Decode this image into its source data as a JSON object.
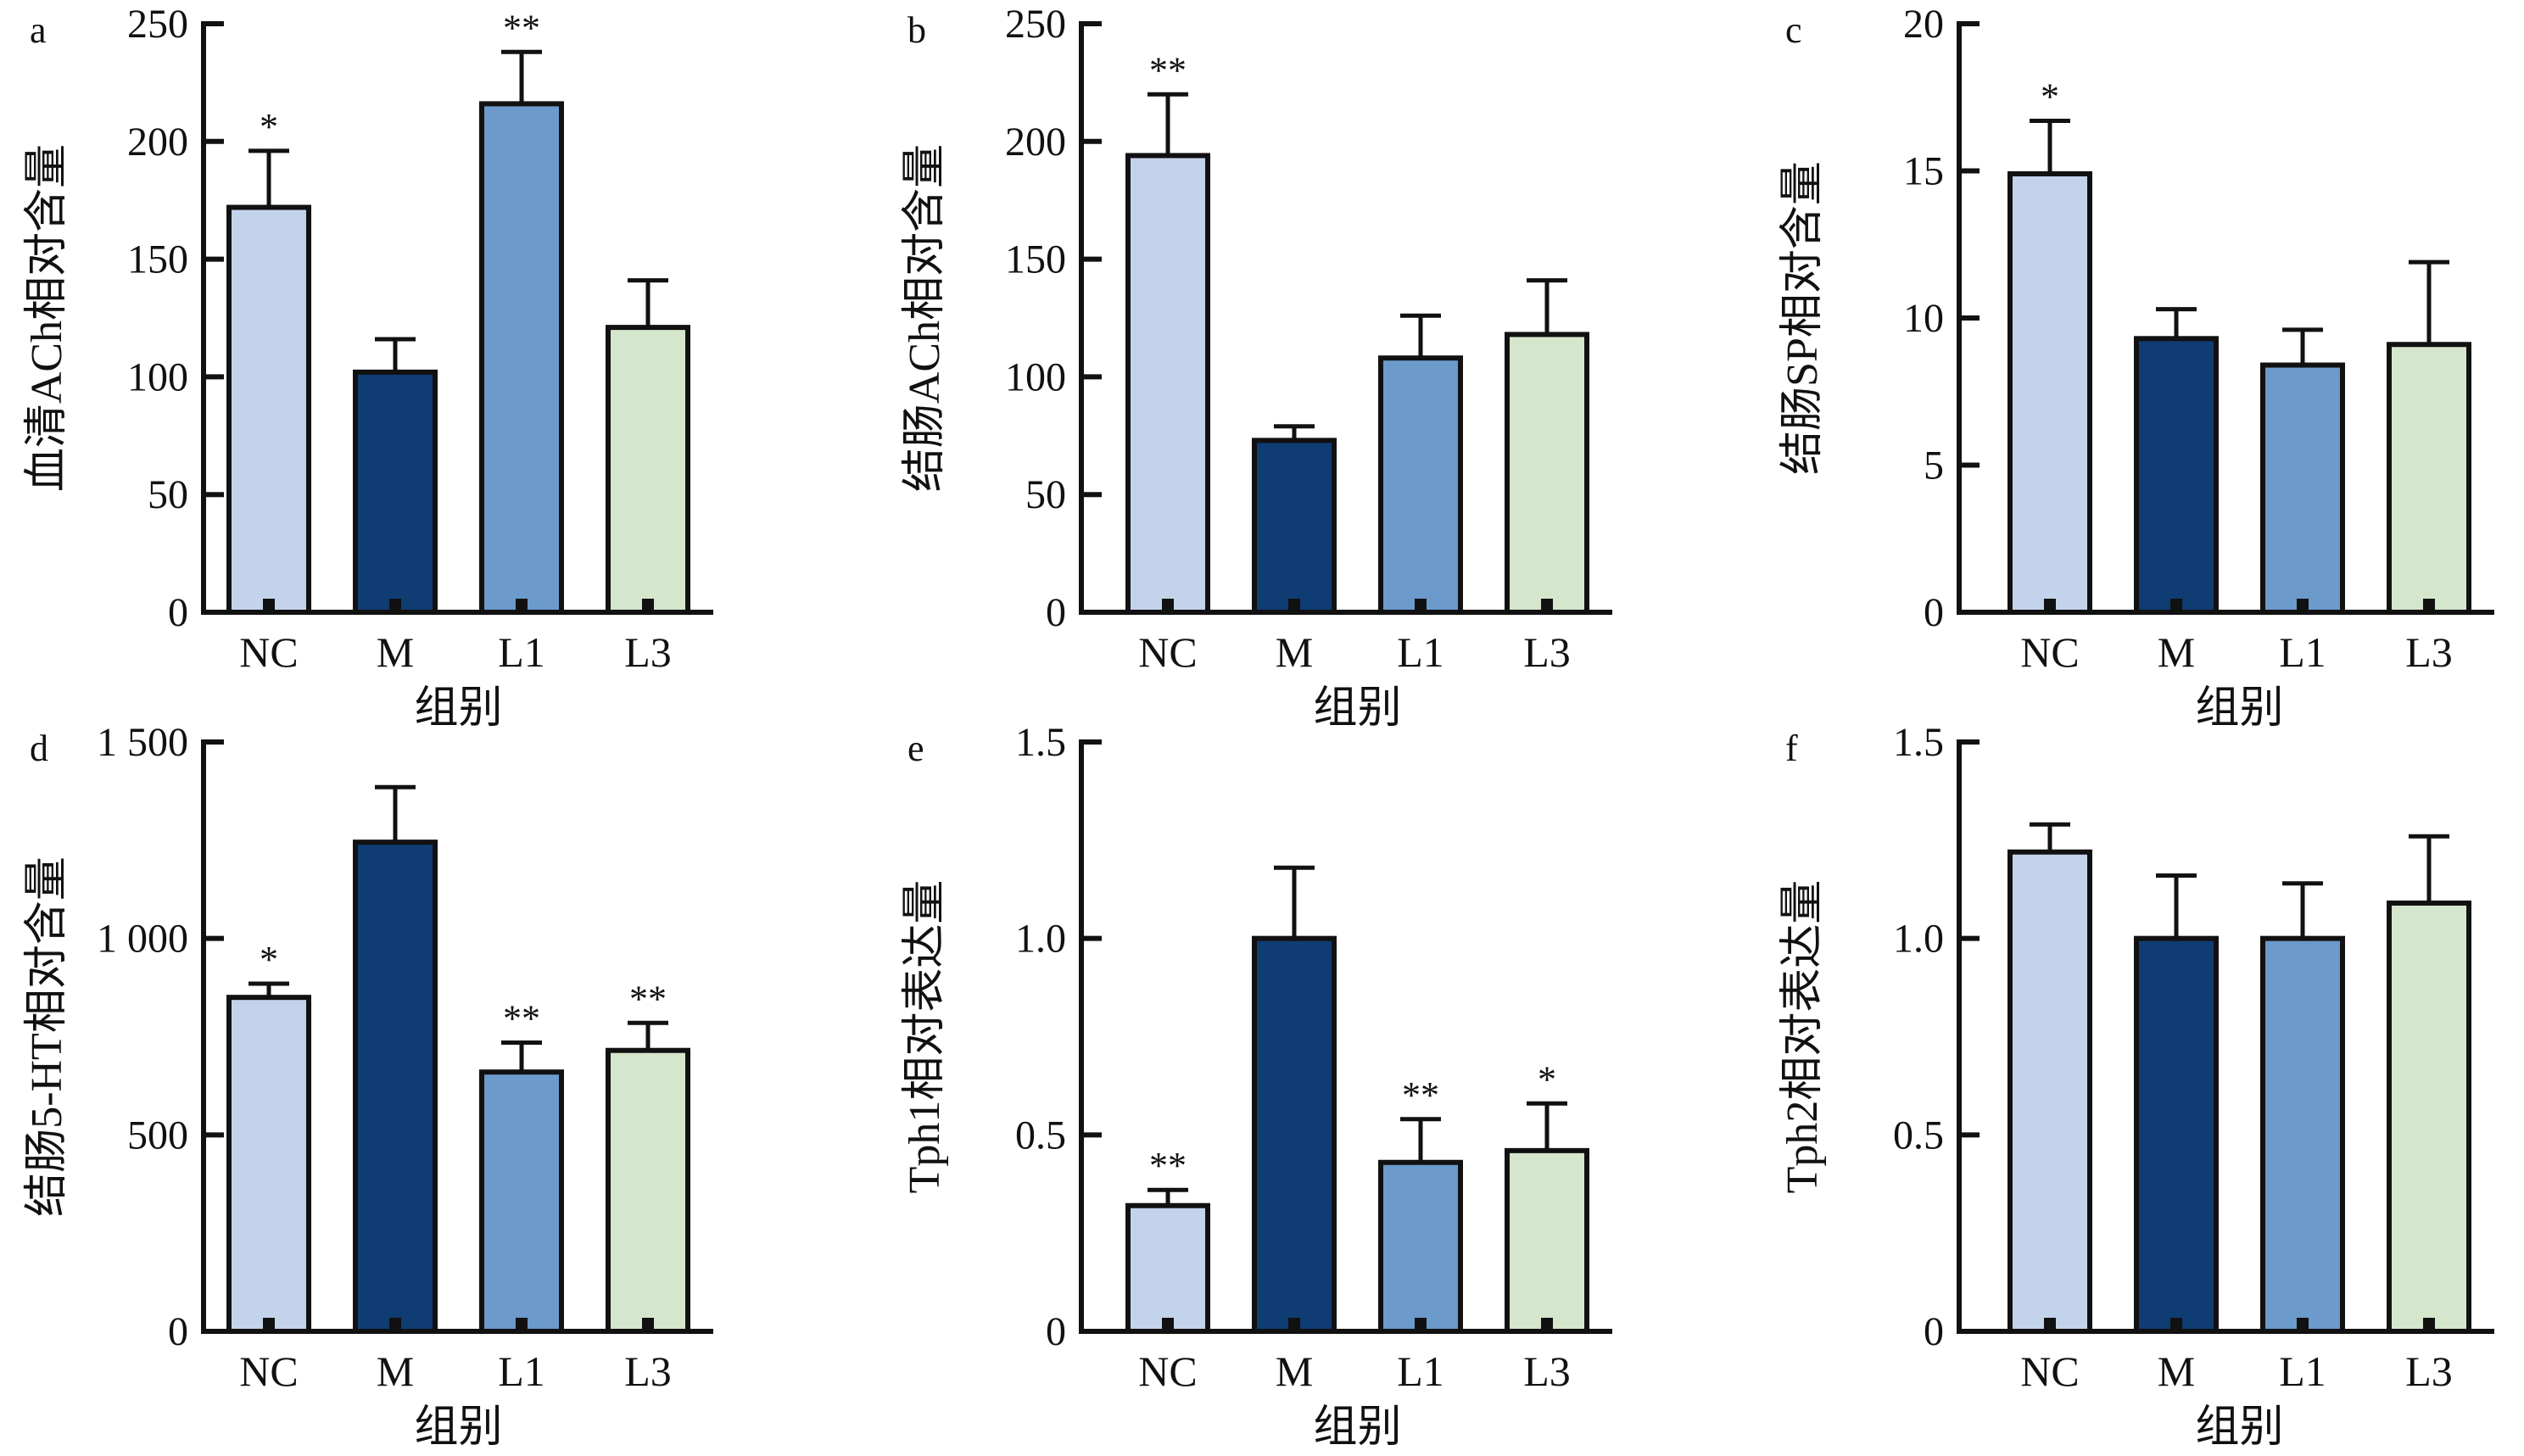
{
  "colors": {
    "NC": "#c3d3eb",
    "M": "#0f3c72",
    "L1": "#6b9acb",
    "L3": "#d4e6cc",
    "axis": "#111111"
  },
  "chart_data": [
    {
      "panel": "a",
      "type": "bar",
      "categories": [
        "NC",
        "M",
        "L1",
        "L3"
      ],
      "values": [
        172,
        102,
        216,
        121
      ],
      "errors": [
        24,
        14,
        22,
        20
      ],
      "significance": [
        "*",
        "",
        "**",
        ""
      ],
      "ylabel": "血清ACh相对含量",
      "xlabel": "组别",
      "ylim": [
        0,
        250
      ],
      "yticks": [
        0,
        50,
        100,
        150,
        200,
        250
      ],
      "ytick_labels": [
        "0",
        "50",
        "100",
        "150",
        "200",
        "250"
      ]
    },
    {
      "panel": "b",
      "type": "bar",
      "categories": [
        "NC",
        "M",
        "L1",
        "L3"
      ],
      "values": [
        194,
        73,
        108,
        118
      ],
      "errors": [
        26,
        6,
        18,
        23
      ],
      "significance": [
        "**",
        "",
        "",
        ""
      ],
      "ylabel": "结肠ACh相对含量",
      "xlabel": "组别",
      "ylim": [
        0,
        250
      ],
      "yticks": [
        0,
        50,
        100,
        150,
        200,
        250
      ],
      "ytick_labels": [
        "0",
        "50",
        "100",
        "150",
        "200",
        "250"
      ]
    },
    {
      "panel": "c",
      "type": "bar",
      "categories": [
        "NC",
        "M",
        "L1",
        "L3"
      ],
      "values": [
        14.9,
        9.3,
        8.4,
        9.1
      ],
      "errors": [
        1.8,
        1.0,
        1.2,
        2.8
      ],
      "significance": [
        "*",
        "",
        "",
        ""
      ],
      "ylabel": "结肠SP相对含量",
      "xlabel": "组别",
      "ylim": [
        0,
        20
      ],
      "yticks": [
        0,
        5,
        10,
        15,
        20
      ],
      "ytick_labels": [
        "0",
        "5",
        "10",
        "15",
        "20"
      ]
    },
    {
      "panel": "d",
      "type": "bar",
      "categories": [
        "NC",
        "M",
        "L1",
        "L3"
      ],
      "values": [
        850,
        1245,
        660,
        715
      ],
      "errors": [
        35,
        140,
        75,
        70
      ],
      "significance": [
        "*",
        "",
        "**",
        "**"
      ],
      "ylabel": "结肠5-HT相对含量",
      "xlabel": "组别",
      "ylim": [
        0,
        1500
      ],
      "yticks": [
        0,
        500,
        1000,
        1500
      ],
      "ytick_labels": [
        "0",
        "500",
        "1 000",
        "1 500"
      ]
    },
    {
      "panel": "e",
      "type": "bar",
      "categories": [
        "NC",
        "M",
        "L1",
        "L3"
      ],
      "values": [
        0.32,
        1.0,
        0.43,
        0.46
      ],
      "errors": [
        0.04,
        0.18,
        0.11,
        0.12
      ],
      "significance": [
        "**",
        "",
        "**",
        "*"
      ],
      "ylabel": "Tph1相对表达量",
      "xlabel": "组别",
      "ylim": [
        0,
        1.5
      ],
      "yticks": [
        0,
        0.5,
        1.0,
        1.5
      ],
      "ytick_labels": [
        "0",
        "0.5",
        "1.0",
        "1.5"
      ]
    },
    {
      "panel": "f",
      "type": "bar",
      "categories": [
        "NC",
        "M",
        "L1",
        "L3"
      ],
      "values": [
        1.22,
        1.0,
        1.0,
        1.09
      ],
      "errors": [
        0.07,
        0.16,
        0.14,
        0.17
      ],
      "significance": [
        "",
        "",
        "",
        ""
      ],
      "ylabel": "Tph2相对表达量",
      "xlabel": "组别",
      "ylim": [
        0,
        1.5
      ],
      "yticks": [
        0,
        0.5,
        1.0,
        1.5
      ],
      "ytick_labels": [
        "0",
        "0.5",
        "1.0",
        "1.5"
      ]
    }
  ]
}
